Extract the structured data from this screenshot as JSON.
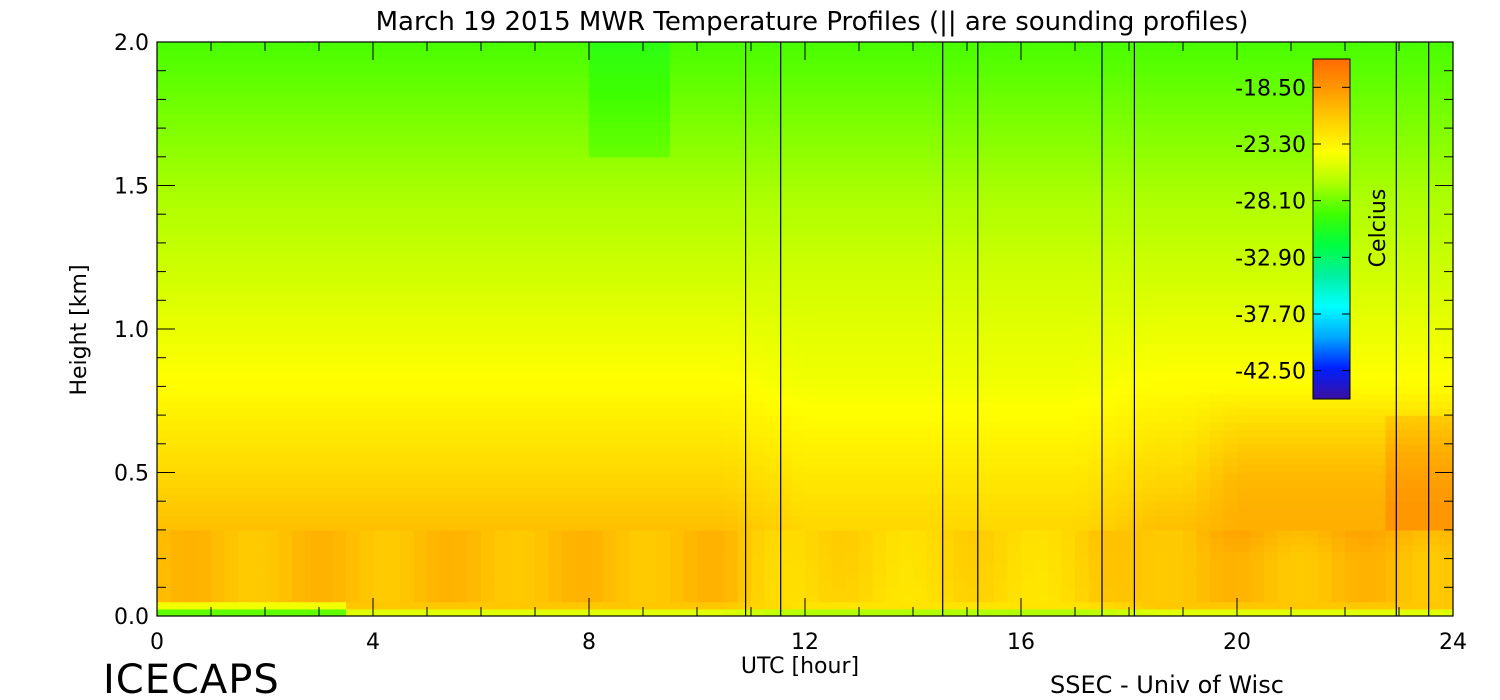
{
  "chart_data": {
    "type": "heatmap",
    "title": "March 19 2015 MWR Temperature Profiles (|| are sounding profiles)",
    "xlabel": "UTC [hour]",
    "ylabel": "Height [km]",
    "xlim": [
      0,
      24
    ],
    "ylim": [
      0.0,
      2.0
    ],
    "x_ticks": [
      0,
      4,
      8,
      12,
      16,
      20,
      24
    ],
    "x_tick_labels": [
      "0",
      "4",
      "8",
      "12",
      "16",
      "20",
      "24"
    ],
    "y_ticks": [
      0.0,
      0.5,
      1.0,
      1.5,
      2.0
    ],
    "y_tick_labels": [
      "0.0",
      "0.5",
      "1.0",
      "1.5",
      "2.0"
    ],
    "colorbar": {
      "label": "Celcius",
      "range": [
        -44.9,
        -16.1
      ],
      "ticks": [
        -18.5,
        -23.3,
        -28.1,
        -32.9,
        -37.7,
        -42.5
      ],
      "tick_labels": [
        "-18.50",
        "-23.30",
        "-28.10",
        "-32.90",
        "-37.70",
        "-42.50"
      ],
      "colors": [
        "#3a0fa0",
        "#0020ff",
        "#00a8ff",
        "#00ffff",
        "#00f0a0",
        "#00ff40",
        "#40ff00",
        "#b0ff00",
        "#ffff00",
        "#ffd000",
        "#ff9a00",
        "#ff6a00"
      ]
    },
    "sounding_profiles_utc": [
      {
        "start": 10.9,
        "end": 11.55
      },
      {
        "start": 14.55,
        "end": 15.2
      },
      {
        "start": 17.5,
        "end": 18.1
      },
      {
        "start": 22.95,
        "end": 23.55
      }
    ],
    "grid": false,
    "legend": "colorbar at top-right inside plot"
  },
  "footer": {
    "logo": "ICECAPS",
    "credit": "SSEC - Univ of Wisc"
  }
}
